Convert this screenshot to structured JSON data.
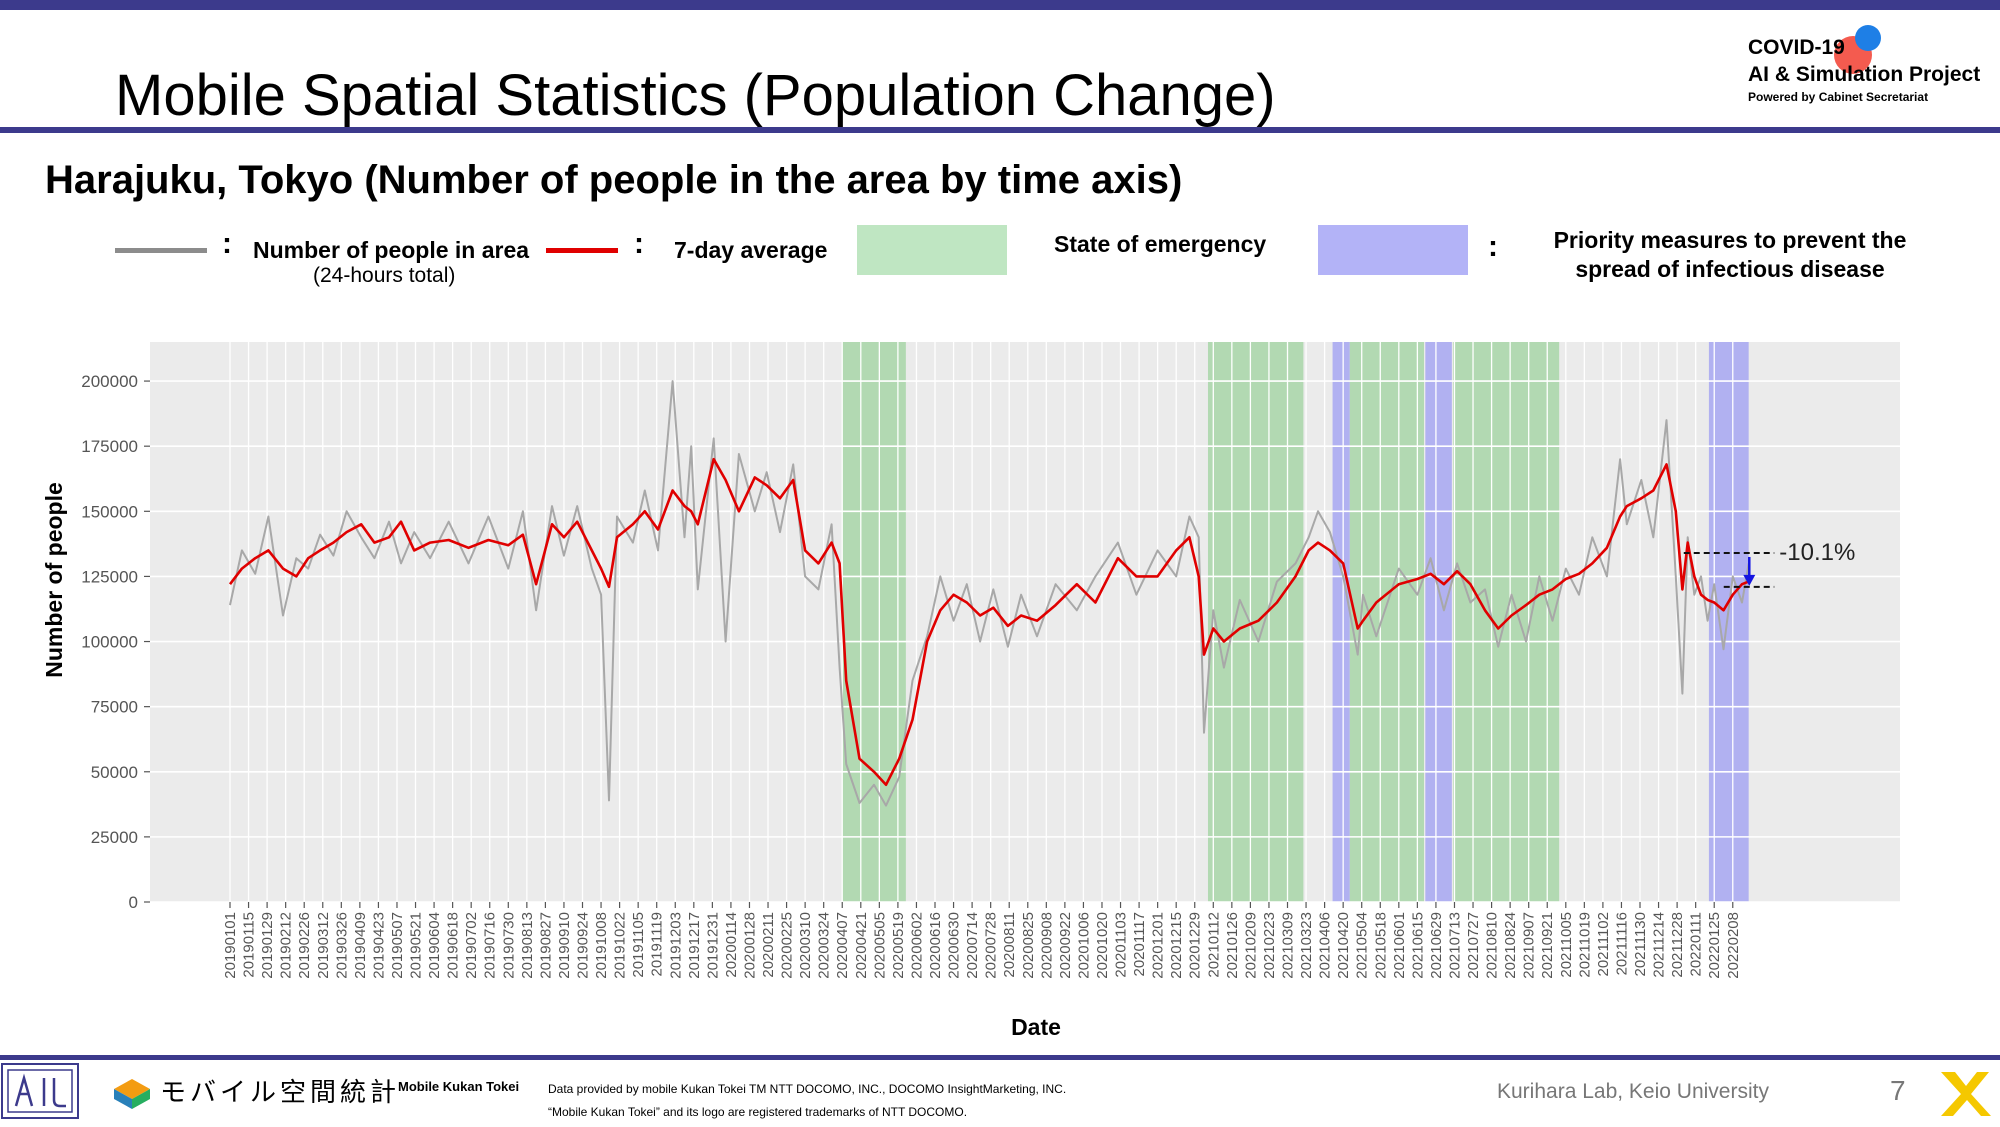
{
  "slide": {
    "title": "Mobile Spatial Statistics (Population Change)",
    "subtitle": "Harajuku, Tokyo (Number of people in the area by time axis)",
    "page_number": "7",
    "colors": {
      "bar": "#3c3a8c",
      "raw": "#a8a8a8",
      "avg": "#e00000",
      "emergency": "#bfe6c2",
      "priority": "#b3b3f7",
      "plot_bg": "#ebebeb"
    }
  },
  "project": {
    "line1": "COVID-19",
    "line2": "AI & Simulation Project",
    "line3": "Powered by Cabinet Secretariat"
  },
  "legend": {
    "raw_label": "Number of people in area",
    "raw_sub": "(24-hours total)",
    "avg_label": "7-day average",
    "emergency_label": "State of emergency",
    "priority_label_1": "Priority measures to prevent the",
    "priority_label_2": "spread of infectious disease",
    "colon": ":"
  },
  "footer": {
    "logo_ja": "モバイル空間統計",
    "logo_en": "Mobile Kukan Tokei",
    "provided_1": "Data provided by mobile Kukan Tokei TM NTT DOCOMO, INC., DOCOMO InsightMarketing, INC.",
    "provided_2": "“Mobile Kukan Tokei” and its logo are registered trademarks of NTT DOCOMO.",
    "lab": "Kurihara Lab, Keio University"
  },
  "chart_data": {
    "type": "line",
    "xlabel": "Date",
    "ylabel": "Number of people",
    "ylim": [
      0,
      215000
    ],
    "xlim": [
      "2019-01-01",
      "2022-02-21"
    ],
    "yticks": [
      0,
      25000,
      50000,
      75000,
      100000,
      125000,
      150000,
      175000,
      200000
    ],
    "xticks": [
      "20190101",
      "20190115",
      "20190129",
      "20190212",
      "20190226",
      "20190312",
      "20190326",
      "20190409",
      "20190423",
      "20190507",
      "20190521",
      "20190604",
      "20190618",
      "20190702",
      "20190716",
      "20190730",
      "20190813",
      "20190827",
      "20190910",
      "20190924",
      "20191008",
      "20191022",
      "20191105",
      "20191119",
      "20191203",
      "20191217",
      "20191231",
      "20200114",
      "20200128",
      "20200211",
      "20200225",
      "20200310",
      "20200324",
      "20200407",
      "20200421",
      "20200505",
      "20200519",
      "20200602",
      "20200616",
      "20200630",
      "20200714",
      "20200728",
      "20200811",
      "20200825",
      "20200908",
      "20200922",
      "20201006",
      "20201020",
      "20201103",
      "20201117",
      "20201201",
      "20201215",
      "20201229",
      "20210112",
      "20210126",
      "20210209",
      "20210223",
      "20210309",
      "20210323",
      "20210406",
      "20210420",
      "20210504",
      "20210518",
      "20210601",
      "20210615",
      "20210629",
      "20210713",
      "20210727",
      "20210810",
      "20210824",
      "20210907",
      "20210921",
      "20211005",
      "20211019",
      "20211102",
      "20211116",
      "20211130",
      "20211214",
      "20211228",
      "20220111",
      "20220125",
      "20220208"
    ],
    "grid": true,
    "shaded_periods": [
      {
        "name": "State of emergency",
        "start": "2020-04-07",
        "end": "2020-05-25"
      },
      {
        "name": "State of emergency",
        "start": "2021-01-08",
        "end": "2021-03-21"
      },
      {
        "name": "Priority measures to prevent the spread of infectious disease",
        "start": "2021-04-12",
        "end": "2021-04-25"
      },
      {
        "name": "State of emergency",
        "start": "2021-04-25",
        "end": "2021-06-20"
      },
      {
        "name": "Priority measures to prevent the spread of infectious disease",
        "start": "2021-06-21",
        "end": "2021-07-11"
      },
      {
        "name": "State of emergency",
        "start": "2021-07-12",
        "end": "2021-09-30"
      },
      {
        "name": "Priority measures to prevent the spread of infectious disease",
        "start": "2022-01-21",
        "end": "2022-02-20"
      }
    ],
    "annotation": {
      "text": "-10.1%",
      "from_value": 134000,
      "to_value": 121000,
      "x_start": "2022-01-02",
      "x_end": "2022-02-28"
    },
    "series": [
      {
        "name": "7-day average",
        "x": [
          "2019-01-01",
          "2019-01-10",
          "2019-01-20",
          "2019-01-30",
          "2019-02-10",
          "2019-02-20",
          "2019-03-01",
          "2019-03-10",
          "2019-03-20",
          "2019-03-30",
          "2019-04-10",
          "2019-04-20",
          "2019-05-01",
          "2019-05-10",
          "2019-05-20",
          "2019-06-01",
          "2019-06-15",
          "2019-06-30",
          "2019-07-15",
          "2019-07-30",
          "2019-08-10",
          "2019-08-20",
          "2019-09-01",
          "2019-09-10",
          "2019-09-20",
          "2019-10-01",
          "2019-10-08",
          "2019-10-14",
          "2019-10-20",
          "2019-11-01",
          "2019-11-10",
          "2019-11-20",
          "2019-12-01",
          "2019-12-10",
          "2019-12-15",
          "2019-12-20",
          "2020-01-01",
          "2020-01-10",
          "2020-01-20",
          "2020-02-01",
          "2020-02-10",
          "2020-02-20",
          "2020-03-01",
          "2020-03-10",
          "2020-03-20",
          "2020-03-30",
          "2020-04-05",
          "2020-04-10",
          "2020-04-20",
          "2020-05-01",
          "2020-05-10",
          "2020-05-20",
          "2020-05-30",
          "2020-06-10",
          "2020-06-20",
          "2020-06-30",
          "2020-07-10",
          "2020-07-20",
          "2020-07-30",
          "2020-08-10",
          "2020-08-20",
          "2020-09-01",
          "2020-09-15",
          "2020-10-01",
          "2020-10-15",
          "2020-11-01",
          "2020-11-15",
          "2020-12-01",
          "2020-12-15",
          "2020-12-25",
          "2021-01-01",
          "2021-01-05",
          "2021-01-12",
          "2021-01-20",
          "2021-02-01",
          "2021-02-15",
          "2021-03-01",
          "2021-03-15",
          "2021-03-25",
          "2021-04-01",
          "2021-04-10",
          "2021-04-20",
          "2021-05-01",
          "2021-05-05",
          "2021-05-15",
          "2021-06-01",
          "2021-06-15",
          "2021-06-25",
          "2021-07-05",
          "2021-07-15",
          "2021-07-25",
          "2021-08-05",
          "2021-08-15",
          "2021-08-25",
          "2021-09-05",
          "2021-09-15",
          "2021-09-25",
          "2021-10-05",
          "2021-10-15",
          "2021-10-25",
          "2021-11-05",
          "2021-11-15",
          "2021-11-20",
          "2021-12-01",
          "2021-12-10",
          "2021-12-20",
          "2021-12-27",
          "2022-01-01",
          "2022-01-05",
          "2022-01-10",
          "2022-01-15",
          "2022-01-20",
          "2022-01-25",
          "2022-02-01",
          "2022-02-08",
          "2022-02-15",
          "2022-02-20"
        ],
        "y": [
          122000,
          128000,
          132000,
          135000,
          128000,
          125000,
          132000,
          135000,
          138000,
          142000,
          145000,
          138000,
          140000,
          146000,
          135000,
          138000,
          139000,
          136000,
          139000,
          137000,
          141000,
          122000,
          145000,
          140000,
          146000,
          135000,
          128000,
          121000,
          140000,
          145000,
          150000,
          143000,
          158000,
          152000,
          150000,
          145000,
          170000,
          162000,
          150000,
          163000,
          160000,
          155000,
          162000,
          135000,
          130000,
          138000,
          130000,
          85000,
          55000,
          50000,
          45000,
          55000,
          70000,
          100000,
          112000,
          118000,
          115000,
          110000,
          113000,
          106000,
          110000,
          108000,
          114000,
          122000,
          115000,
          132000,
          125000,
          125000,
          135000,
          140000,
          125000,
          95000,
          105000,
          100000,
          105000,
          108000,
          115000,
          125000,
          135000,
          138000,
          135000,
          130000,
          105000,
          108000,
          115000,
          122000,
          124000,
          126000,
          122000,
          127000,
          122000,
          112000,
          105000,
          110000,
          114000,
          118000,
          120000,
          124000,
          126000,
          130000,
          136000,
          148000,
          152000,
          155000,
          158000,
          168000,
          150000,
          120000,
          138000,
          125000,
          118000,
          116000,
          115000,
          112000,
          118000,
          122000,
          123000
        ]
      },
      {
        "name": "Number of people in area (24-hours total)",
        "x": [
          "2019-01-01",
          "2019-01-10",
          "2019-01-20",
          "2019-01-30",
          "2019-02-10",
          "2019-02-20",
          "2019-03-01",
          "2019-03-10",
          "2019-03-20",
          "2019-03-30",
          "2019-04-10",
          "2019-04-20",
          "2019-05-01",
          "2019-05-10",
          "2019-05-20",
          "2019-06-01",
          "2019-06-15",
          "2019-06-30",
          "2019-07-15",
          "2019-07-30",
          "2019-08-10",
          "2019-08-20",
          "2019-09-01",
          "2019-09-10",
          "2019-09-20",
          "2019-10-01",
          "2019-10-08",
          "2019-10-14",
          "2019-10-20",
          "2019-11-01",
          "2019-11-10",
          "2019-11-20",
          "2019-12-01",
          "2019-12-10",
          "2019-12-15",
          "2019-12-20",
          "2020-01-01",
          "2020-01-10",
          "2020-01-20",
          "2020-02-01",
          "2020-02-10",
          "2020-02-20",
          "2020-03-01",
          "2020-03-10",
          "2020-03-20",
          "2020-03-30",
          "2020-04-05",
          "2020-04-10",
          "2020-04-20",
          "2020-05-01",
          "2020-05-10",
          "2020-05-20",
          "2020-05-30",
          "2020-06-10",
          "2020-06-20",
          "2020-06-30",
          "2020-07-10",
          "2020-07-20",
          "2020-07-30",
          "2020-08-10",
          "2020-08-20",
          "2020-09-01",
          "2020-09-15",
          "2020-10-01",
          "2020-10-15",
          "2020-11-01",
          "2020-11-15",
          "2020-12-01",
          "2020-12-15",
          "2020-12-25",
          "2021-01-01",
          "2021-01-05",
          "2021-01-12",
          "2021-01-20",
          "2021-02-01",
          "2021-02-15",
          "2021-03-01",
          "2021-03-15",
          "2021-03-25",
          "2021-04-01",
          "2021-04-10",
          "2021-04-20",
          "2021-05-01",
          "2021-05-05",
          "2021-05-15",
          "2021-06-01",
          "2021-06-15",
          "2021-06-25",
          "2021-07-05",
          "2021-07-15",
          "2021-07-25",
          "2021-08-05",
          "2021-08-15",
          "2021-08-25",
          "2021-09-05",
          "2021-09-15",
          "2021-09-25",
          "2021-10-05",
          "2021-10-15",
          "2021-10-25",
          "2021-11-05",
          "2021-11-15",
          "2021-11-20",
          "2021-12-01",
          "2021-12-10",
          "2021-12-20",
          "2021-12-27",
          "2022-01-01",
          "2022-01-05",
          "2022-01-10",
          "2022-01-15",
          "2022-01-20",
          "2022-01-25",
          "2022-02-01",
          "2022-02-08",
          "2022-02-15",
          "2022-02-20"
        ],
        "y": [
          114000,
          135000,
          126000,
          148000,
          110000,
          132000,
          128000,
          141000,
          133000,
          150000,
          140000,
          132000,
          146000,
          130000,
          142000,
          132000,
          146000,
          130000,
          148000,
          128000,
          150000,
          112000,
          152000,
          133000,
          152000,
          128000,
          118000,
          39000,
          148000,
          138000,
          158000,
          135000,
          200000,
          140000,
          175000,
          120000,
          178000,
          100000,
          172000,
          150000,
          165000,
          142000,
          168000,
          125000,
          120000,
          145000,
          90000,
          53000,
          38000,
          45000,
          37000,
          48000,
          85000,
          102000,
          125000,
          108000,
          122000,
          100000,
          120000,
          98000,
          118000,
          102000,
          122000,
          112000,
          125000,
          138000,
          118000,
          135000,
          125000,
          148000,
          140000,
          65000,
          112000,
          90000,
          116000,
          100000,
          123000,
          130000,
          140000,
          150000,
          142000,
          125000,
          95000,
          118000,
          102000,
          128000,
          118000,
          132000,
          112000,
          130000,
          115000,
          120000,
          98000,
          118000,
          100000,
          125000,
          108000,
          128000,
          118000,
          140000,
          125000,
          170000,
          145000,
          162000,
          140000,
          185000,
          125000,
          80000,
          140000,
          118000,
          125000,
          108000,
          122000,
          97000,
          125000,
          115000,
          130000
        ]
      }
    ]
  }
}
